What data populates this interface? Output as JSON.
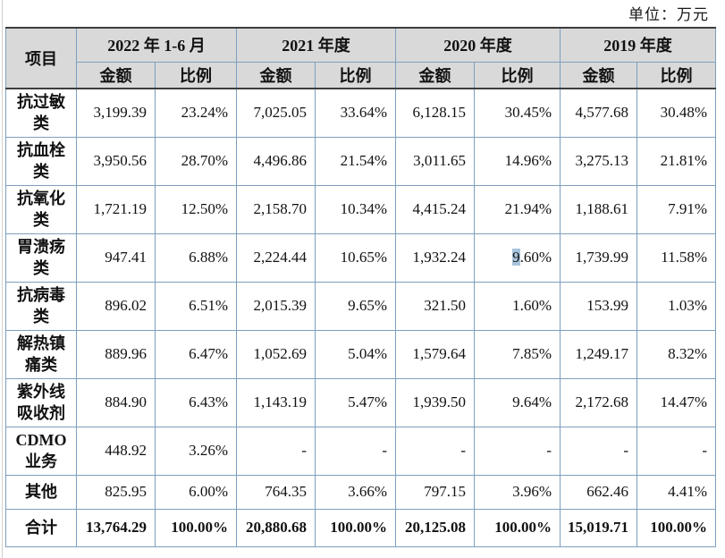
{
  "unit_label": "单位：万元",
  "colors": {
    "header_bg": "#d9d9d9",
    "grid_blue": "#7d9fbe",
    "dark_line": "#3d3d3d",
    "selection_highlight": "#a9c4dd"
  },
  "table": {
    "item_header": "项目",
    "groups": [
      {
        "label": "2022 年 1-6 月"
      },
      {
        "label": "2021 年度"
      },
      {
        "label": "2020 年度"
      },
      {
        "label": "2019 年度"
      }
    ],
    "sub_headers": [
      "金额",
      "比例",
      "金额",
      "比例",
      "金额",
      "比例",
      "金额",
      "比例"
    ],
    "rows": [
      {
        "label": "抗过敏\n类",
        "values": [
          "3,199.39",
          "23.24%",
          "7,025.05",
          "33.64%",
          "6,128.15",
          "30.45%",
          "4,577.68",
          "30.48%"
        ]
      },
      {
        "label": "抗血栓\n类",
        "values": [
          "3,950.56",
          "28.70%",
          "4,496.86",
          "21.54%",
          "3,011.65",
          "14.96%",
          "3,275.13",
          "21.81%"
        ]
      },
      {
        "label": "抗氧化\n类",
        "values": [
          "1,721.19",
          "12.50%",
          "2,158.70",
          "10.34%",
          "4,415.24",
          "21.94%",
          "1,188.61",
          "7.91%"
        ]
      },
      {
        "label": "胃溃疡\n类",
        "values": [
          "947.41",
          "6.88%",
          "2,224.44",
          "10.65%",
          "1,932.24",
          "9.60%",
          "1,739.99",
          "11.58%"
        ]
      },
      {
        "label": "抗病毒\n类",
        "values": [
          "896.02",
          "6.51%",
          "2,015.39",
          "9.65%",
          "321.50",
          "1.60%",
          "153.99",
          "1.03%"
        ]
      },
      {
        "label": "解热镇\n痛类",
        "values": [
          "889.96",
          "6.47%",
          "1,052.69",
          "5.04%",
          "1,579.64",
          "7.85%",
          "1,249.17",
          "8.32%"
        ]
      },
      {
        "label": "紫外线\n吸收剂",
        "values": [
          "884.90",
          "6.43%",
          "1,143.19",
          "5.47%",
          "1,939.50",
          "9.64%",
          "2,172.68",
          "14.47%"
        ]
      },
      {
        "label": "CDMO\n业务",
        "values": [
          "448.92",
          "3.26%",
          "-",
          "-",
          "-",
          "-",
          "-",
          "-"
        ]
      },
      {
        "label": "其他",
        "values": [
          "825.95",
          "6.00%",
          "764.35",
          "3.66%",
          "797.15",
          "3.96%",
          "662.46",
          "4.41%"
        ]
      },
      {
        "label": "合计",
        "values": [
          "13,764.29",
          "100.00%",
          "20,880.68",
          "100.00%",
          "20,125.08",
          "100.00%",
          "15,019.71",
          "100.00%"
        ]
      }
    ]
  },
  "text_selection": {
    "row_index": 3,
    "value_index": 5,
    "selected_text": "9",
    "rest_text": ".60%"
  }
}
